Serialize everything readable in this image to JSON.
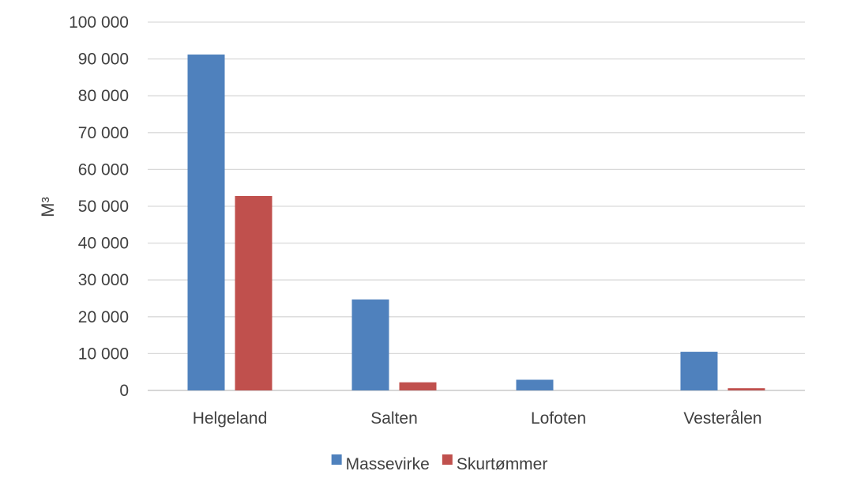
{
  "chart_data": {
    "type": "bar",
    "categories": [
      "Helgeland",
      "Salten",
      "Lofoten",
      "Vesterålen"
    ],
    "series": [
      {
        "name": "Massevirke",
        "color": "#4f81bd",
        "values": [
          91200,
          24700,
          2900,
          10500
        ]
      },
      {
        "name": "Skurtømmer",
        "color": "#c0504d",
        "values": [
          52800,
          2200,
          0,
          600
        ]
      }
    ],
    "ylabel": "M³",
    "ylim": [
      0,
      100000
    ],
    "yticks": [
      0,
      10000,
      20000,
      30000,
      40000,
      50000,
      60000,
      70000,
      80000,
      90000,
      100000
    ],
    "ytick_labels": [
      "0",
      "10 000",
      "20 000",
      "30 000",
      "40 000",
      "50 000",
      "60 000",
      "70 000",
      "80 000",
      "90 000",
      "100 000"
    ],
    "grid": true,
    "legend_position": "bottom"
  }
}
